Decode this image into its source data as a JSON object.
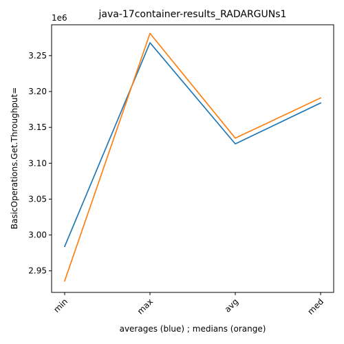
{
  "chart_data": {
    "type": "line",
    "title": "java-17container-results_RADARGUNs1",
    "xlabel": "averages (blue) ; medians (orange)",
    "ylabel": "BasicOperations.Get.Throughput=",
    "y_scale_label": "1e6",
    "categories": [
      "min",
      "max",
      "avg",
      "med"
    ],
    "y_multiplier": 1000000,
    "ylim": [
      2.92,
      3.293
    ],
    "yticks": [
      2.95,
      3.0,
      3.05,
      3.1,
      3.15,
      3.2,
      3.25
    ],
    "ytick_labels": [
      "2.95",
      "3.00",
      "3.05",
      "3.10",
      "3.15",
      "3.20",
      "3.25"
    ],
    "grid": false,
    "series": [
      {
        "values": [
          2.984,
          3.268,
          3.127,
          3.184
        ],
        "color": "#1f77b4"
      },
      {
        "values": [
          2.936,
          3.281,
          3.135,
          3.191
        ],
        "color": "#ff7f0e"
      }
    ]
  }
}
